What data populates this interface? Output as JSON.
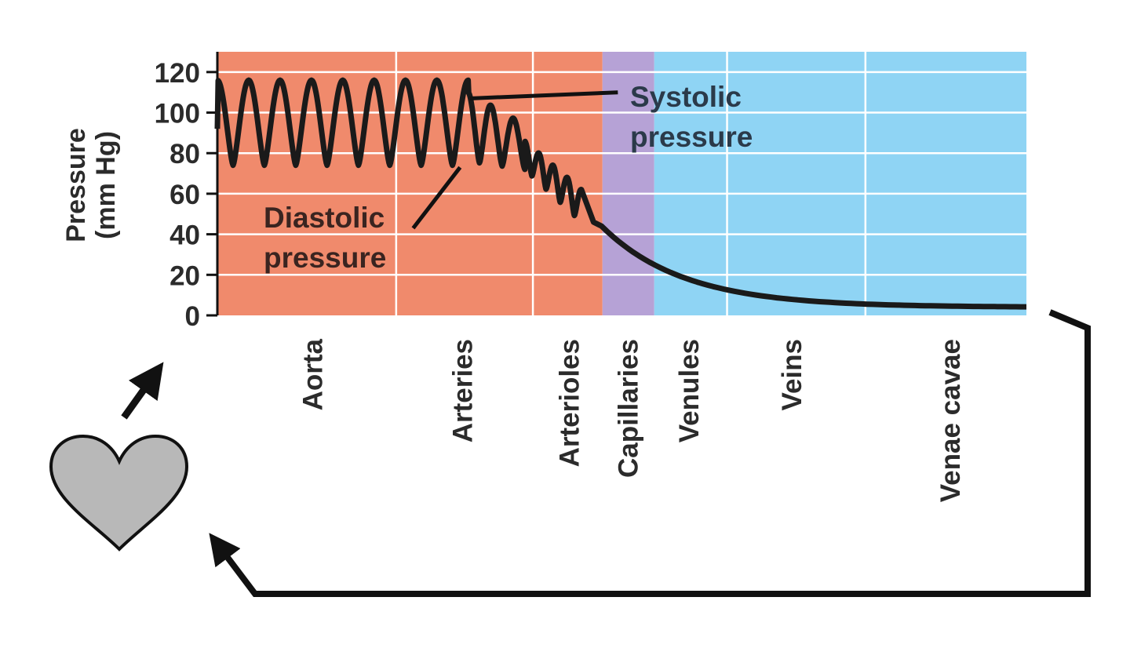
{
  "chart_data": {
    "type": "line",
    "title": "",
    "ylabel": [
      "Pressure",
      "(mm Hg)"
    ],
    "xlabel": "",
    "ylim": [
      0,
      130
    ],
    "yticks": [
      0,
      20,
      40,
      60,
      80,
      100,
      120
    ],
    "x_domain": [
      0,
      100
    ],
    "grid": true,
    "regions": [
      {
        "name": "arterial",
        "x0": 0,
        "x1": 47.6,
        "color": "#f08a6c"
      },
      {
        "name": "capillary",
        "x0": 47.6,
        "x1": 54.0,
        "color": "#b6a2d6"
      },
      {
        "name": "venous",
        "x0": 54.0,
        "x1": 100,
        "color": "#8fd4f4"
      }
    ],
    "vessels": [
      {
        "label": "Aorta",
        "x": 11.8
      },
      {
        "label": "Arteries",
        "x": 30.3
      },
      {
        "label": "Arterioles",
        "x": 43.5
      },
      {
        "label": "Capillaries",
        "x": 50.8
      },
      {
        "label": "Venules",
        "x": 58.3
      },
      {
        "label": "Veins",
        "x": 71.0
      },
      {
        "label": "Venae cavae",
        "x": 90.6
      }
    ],
    "series": [
      {
        "color": "#1a1a1a",
        "segments": [
          {
            "x0": 0,
            "x1": 31,
            "cycles": 8,
            "max": 116,
            "min": 74
          },
          {
            "x0": 31,
            "x1": 38,
            "cycles": 2.5,
            "max": [
              110,
              94
            ],
            "min": [
              76,
              72
            ]
          },
          {
            "x0": 38,
            "x1": 45,
            "cycles": 4,
            "max": [
              86,
              62
            ],
            "min": [
              72,
              46
            ]
          }
        ],
        "decay": {
          "x0": 47.5,
          "x1": 100,
          "from": 44,
          "to": 4
        },
        "start": 92
      }
    ],
    "annotations": [
      {
        "lines": [
          "Systolic",
          "pressure"
        ],
        "points_to": "max"
      },
      {
        "lines": [
          "Diastolic",
          "pressure"
        ],
        "points_to": "min"
      }
    ],
    "circulation_icon": "heart-icon"
  }
}
